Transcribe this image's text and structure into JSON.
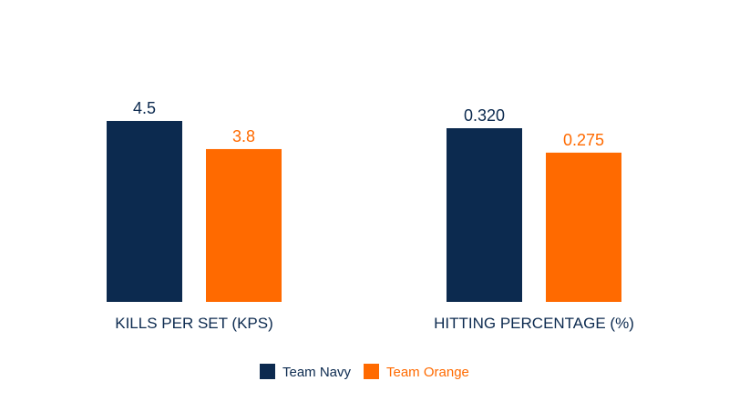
{
  "chart_data": {
    "type": "bar",
    "layout": "two independent panels, one per metric, no axes or gridlines",
    "grid": false,
    "legend_position": "bottom-center",
    "series": [
      {
        "name": "Team Navy",
        "color": "#0c2a4f"
      },
      {
        "name": "Team Orange",
        "color": "#ff6a00"
      }
    ],
    "panels": [
      {
        "category": "KILLS PER SET (KPS)",
        "values": [
          4.5,
          3.8
        ],
        "labels": [
          "4.5",
          "3.8"
        ]
      },
      {
        "category": "HITTING PERCENTAGE (%)",
        "values": [
          0.32,
          0.275
        ],
        "labels": [
          "0.320",
          "0.275"
        ]
      }
    ]
  }
}
